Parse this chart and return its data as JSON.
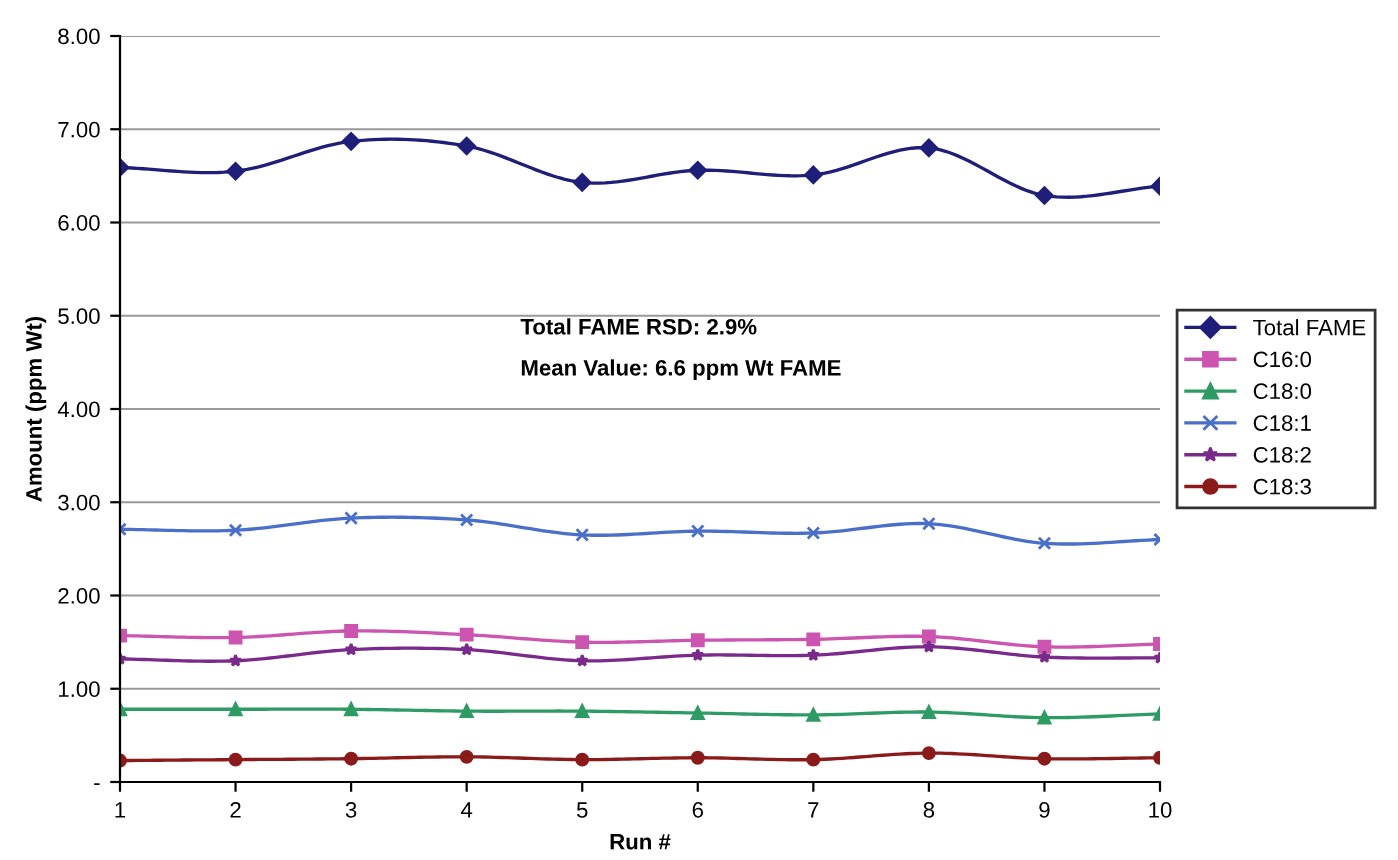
{
  "chart_data": {
    "type": "line",
    "xlabel": "Run #",
    "ylabel": "Amount (ppm Wt)",
    "x": [
      1,
      2,
      3,
      4,
      5,
      6,
      7,
      8,
      9,
      10
    ],
    "series": [
      {
        "name": "Total FAME",
        "color": "#1f1f7a",
        "marker": "diamond",
        "values": [
          6.59,
          6.55,
          6.87,
          6.82,
          6.43,
          6.56,
          6.51,
          6.8,
          6.29,
          6.39
        ]
      },
      {
        "name": "C16:0",
        "color": "#cc55b0",
        "marker": "square",
        "values": [
          1.57,
          1.55,
          1.62,
          1.58,
          1.5,
          1.52,
          1.53,
          1.56,
          1.45,
          1.48
        ]
      },
      {
        "name": "C18:0",
        "color": "#2e9b64",
        "marker": "triangle",
        "values": [
          0.78,
          0.78,
          0.78,
          0.76,
          0.76,
          0.74,
          0.72,
          0.75,
          0.69,
          0.73
        ]
      },
      {
        "name": "C18:1",
        "color": "#4a6fc8",
        "marker": "cross",
        "values": [
          2.71,
          2.7,
          2.83,
          2.81,
          2.65,
          2.69,
          2.67,
          2.77,
          2.56,
          2.6
        ]
      },
      {
        "name": "C18:2",
        "color": "#7a2a8a",
        "marker": "star",
        "values": [
          1.32,
          1.3,
          1.42,
          1.42,
          1.3,
          1.36,
          1.36,
          1.45,
          1.34,
          1.33
        ]
      },
      {
        "name": "C18:3",
        "color": "#8b1a1a",
        "marker": "circle",
        "values": [
          0.23,
          0.24,
          0.25,
          0.27,
          0.24,
          0.26,
          0.24,
          0.31,
          0.25,
          0.26
        ]
      }
    ],
    "xlim": [
      1,
      10
    ],
    "xticks": [
      1,
      2,
      3,
      4,
      5,
      6,
      7,
      8,
      9,
      10
    ],
    "ylim": [
      0,
      8
    ],
    "yticks": [
      {
        "value": 0,
        "label": "-"
      },
      {
        "value": 1,
        "label": "1.00"
      },
      {
        "value": 2,
        "label": "2.00"
      },
      {
        "value": 3,
        "label": "3.00"
      },
      {
        "value": 4,
        "label": "4.00"
      },
      {
        "value": 5,
        "label": "5.00"
      },
      {
        "value": 6,
        "label": "6.00"
      },
      {
        "value": 7,
        "label": "7.00"
      },
      {
        "value": 8,
        "label": "8.00"
      }
    ],
    "grid": "y",
    "legend": "right",
    "line_style": "solid",
    "annotations": [
      "Total FAME RSD: 2.9%",
      "Mean Value: 6.6 ppm Wt FAME"
    ]
  }
}
